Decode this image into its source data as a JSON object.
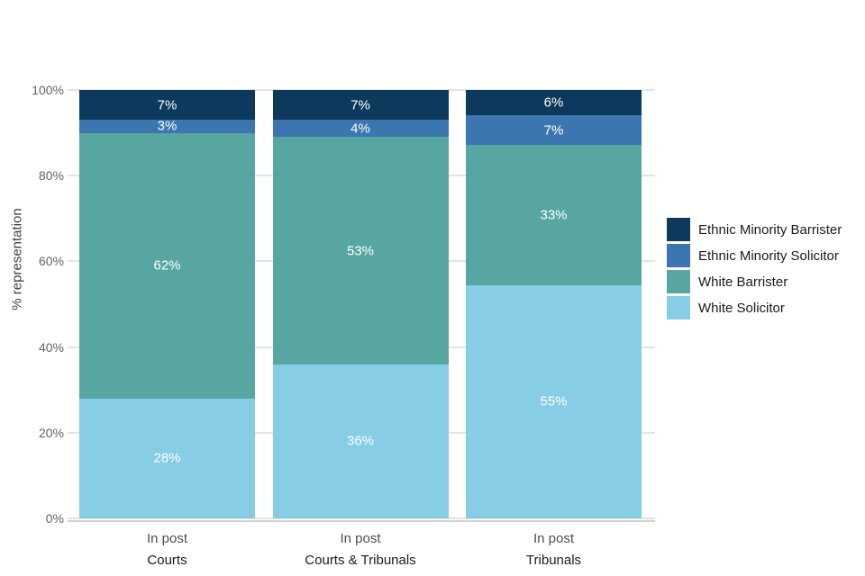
{
  "chart_data": {
    "type": "bar",
    "subtype": "stacked-percent",
    "title": "",
    "ylabel": "% representation",
    "ylim": [
      0,
      100
    ],
    "yticks": [
      {
        "value": 0,
        "label": "0%"
      },
      {
        "value": 20,
        "label": "20%"
      },
      {
        "value": 40,
        "label": "40%"
      },
      {
        "value": 60,
        "label": "60%"
      },
      {
        "value": 80,
        "label": "80%"
      },
      {
        "value": 100,
        "label": "100%"
      }
    ],
    "x_tick_label": "In post",
    "categories": [
      "Courts",
      "Courts & Tribunals",
      "Tribunals"
    ],
    "series": [
      {
        "name": "Ethnic Minority Barrister",
        "color": "#0d3a5c",
        "values": [
          7,
          7,
          6
        ],
        "labels": [
          "7%",
          "7%",
          "6%"
        ]
      },
      {
        "name": "Ethnic Minority Solicitor",
        "color": "#3c76b0",
        "values": [
          3,
          4,
          7
        ],
        "labels": [
          "3%",
          "4%",
          "7%"
        ]
      },
      {
        "name": "White Barrister",
        "color": "#57a6a1",
        "values": [
          62,
          53,
          33
        ],
        "labels": [
          "62%",
          "53%",
          "33%"
        ]
      },
      {
        "name": "White Solicitor",
        "color": "#87cde6",
        "values": [
          28,
          36,
          55
        ],
        "labels": [
          "28%",
          "36%",
          "55%"
        ]
      }
    ],
    "legend_position": "right",
    "grid": true,
    "colors": {
      "background": "#ffffff",
      "gridline": "#e3e3e3",
      "axis_line": "#d2d2d2",
      "tick_text": "#636363",
      "xtick_text": "#4d4d4d",
      "category_text": "#1a1a1a",
      "legend_text": "#1a1a1a",
      "bar_label_text": "#ffffff",
      "axis_title_text": "#404040"
    }
  }
}
